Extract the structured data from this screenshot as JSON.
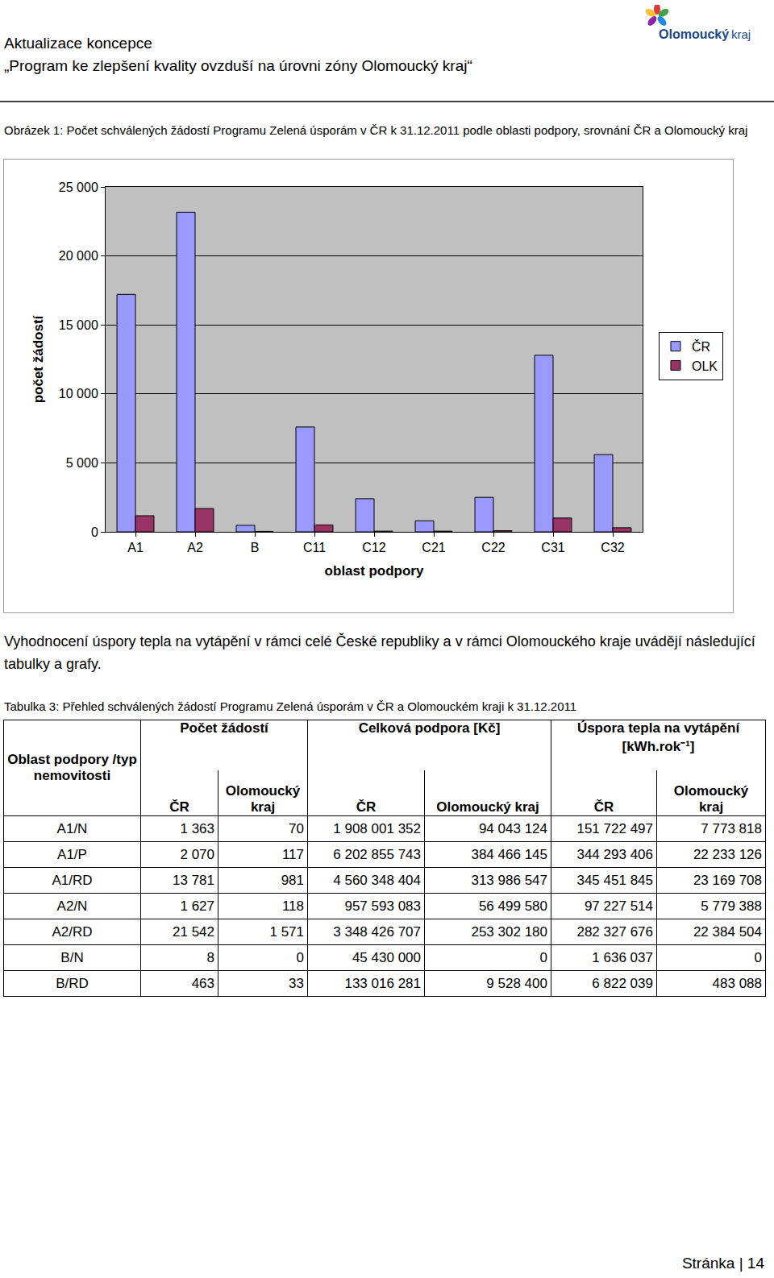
{
  "header": {
    "line1": "Aktualizace koncepce",
    "line2": "„Program ke zlepšení kvality ovzduší na úrovni zóny Olomoucký kraj“",
    "logo": [
      "Olomoucký",
      "kraj"
    ]
  },
  "figure_caption": "Obrázek 1: Počet schválených žádostí Programu Zelená úsporám v ČR k 31.12.2011 podle oblasti podpory, srovnání ČR a Olomoucký kraj",
  "chart_data": {
    "type": "bar",
    "x_label": "oblast podpory",
    "y_label": "počet žádostí",
    "categories": [
      "A1",
      "A2",
      "B",
      "C11",
      "C12",
      "C21",
      "C22",
      "C31",
      "C32"
    ],
    "series": [
      {
        "name": "ČR",
        "color": "#9999FF",
        "values": [
          17214,
          23169,
          471,
          7600,
          2400,
          800,
          2500,
          12800,
          5600
        ]
      },
      {
        "name": "OLK",
        "color": "#993366",
        "values": [
          1168,
          1689,
          33,
          500,
          50,
          50,
          80,
          1000,
          300
        ]
      }
    ],
    "ylim": [
      0,
      25000
    ],
    "yticks": [
      0,
      {
        "value": 5000,
        "label": "5 000"
      },
      {
        "value": 10000,
        "label": "10 000"
      },
      {
        "value": 15000,
        "label": "15 000"
      },
      {
        "value": 20000,
        "label": "20 000"
      },
      {
        "value": 25000,
        "label": "25 000"
      }
    ],
    "grid": true,
    "legend": "right"
  },
  "paragraph": "Vyhodnocení úspory tepla na vytápění v rámci celé České republiky a v rámci Olomouckého kraje uvádějí následující tabulky a grafy.",
  "table_caption": "Tabulka 3: Přehled schválených žádostí Programu Zelená úsporám v ČR a Olomouckém kraji k 31.12.2011",
  "table": {
    "row_header": "Oblast podpory /typ nemovitosti",
    "groups": [
      "Počet žádostí",
      "Celková podpora [Kč]",
      "Úspora tepla na vytápění [kWh.rok⁻¹]"
    ],
    "subheaders": [
      "ČR",
      "Olomoucký kraj"
    ],
    "rows": [
      [
        "A1/N",
        "1 363",
        "70",
        "1 908 001 352",
        "94 043 124",
        "151 722 497",
        "7 773 818"
      ],
      [
        "A1/P",
        "2 070",
        "117",
        "6 202 855 743",
        "384 466 145",
        "344 293 406",
        "22 233 126"
      ],
      [
        "A1/RD",
        "13 781",
        "981",
        "4 560 348 404",
        "313 986 547",
        "345 451 845",
        "23 169 708"
      ],
      [
        "A2/N",
        "1 627",
        "118",
        "957 593 083",
        "56 499 580",
        "97 227 514",
        "5 779 388"
      ],
      [
        "A2/RD",
        "21 542",
        "1 571",
        "3 348 426 707",
        "253 302 180",
        "282 327 676",
        "22 384 504"
      ],
      [
        "B/N",
        "8",
        "0",
        "45 430 000",
        "0",
        "1 636 037",
        "0"
      ],
      [
        "B/RD",
        "463",
        "33",
        "133 016 281",
        "9 528 400",
        "6 822 039",
        "483 088"
      ]
    ]
  },
  "footer": "Stránka | 14"
}
